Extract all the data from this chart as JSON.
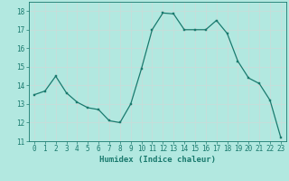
{
  "x": [
    0,
    1,
    2,
    3,
    4,
    5,
    6,
    7,
    8,
    9,
    10,
    11,
    12,
    13,
    14,
    15,
    16,
    17,
    18,
    19,
    20,
    21,
    22,
    23
  ],
  "y": [
    13.5,
    13.7,
    14.5,
    13.6,
    13.1,
    12.8,
    12.7,
    12.1,
    12.0,
    13.0,
    14.9,
    17.0,
    17.9,
    17.85,
    17.0,
    17.0,
    17.0,
    17.5,
    16.8,
    15.3,
    14.4,
    14.1,
    13.2,
    11.2
  ],
  "line_color": "#1a7a6e",
  "marker_color": "#1a7a6e",
  "bg_color": "#b2e8e0",
  "grid_color": "#c8ddd9",
  "xlabel": "Humidex (Indice chaleur)",
  "ylim": [
    11,
    18.5
  ],
  "xlim": [
    -0.5,
    23.5
  ],
  "yticks": [
    11,
    12,
    13,
    14,
    15,
    16,
    17,
    18
  ],
  "xticks": [
    0,
    1,
    2,
    3,
    4,
    5,
    6,
    7,
    8,
    9,
    10,
    11,
    12,
    13,
    14,
    15,
    16,
    17,
    18,
    19,
    20,
    21,
    22,
    23
  ],
  "tick_color": "#1a7a6e",
  "label_fontsize": 6.5,
  "tick_fontsize": 5.5
}
